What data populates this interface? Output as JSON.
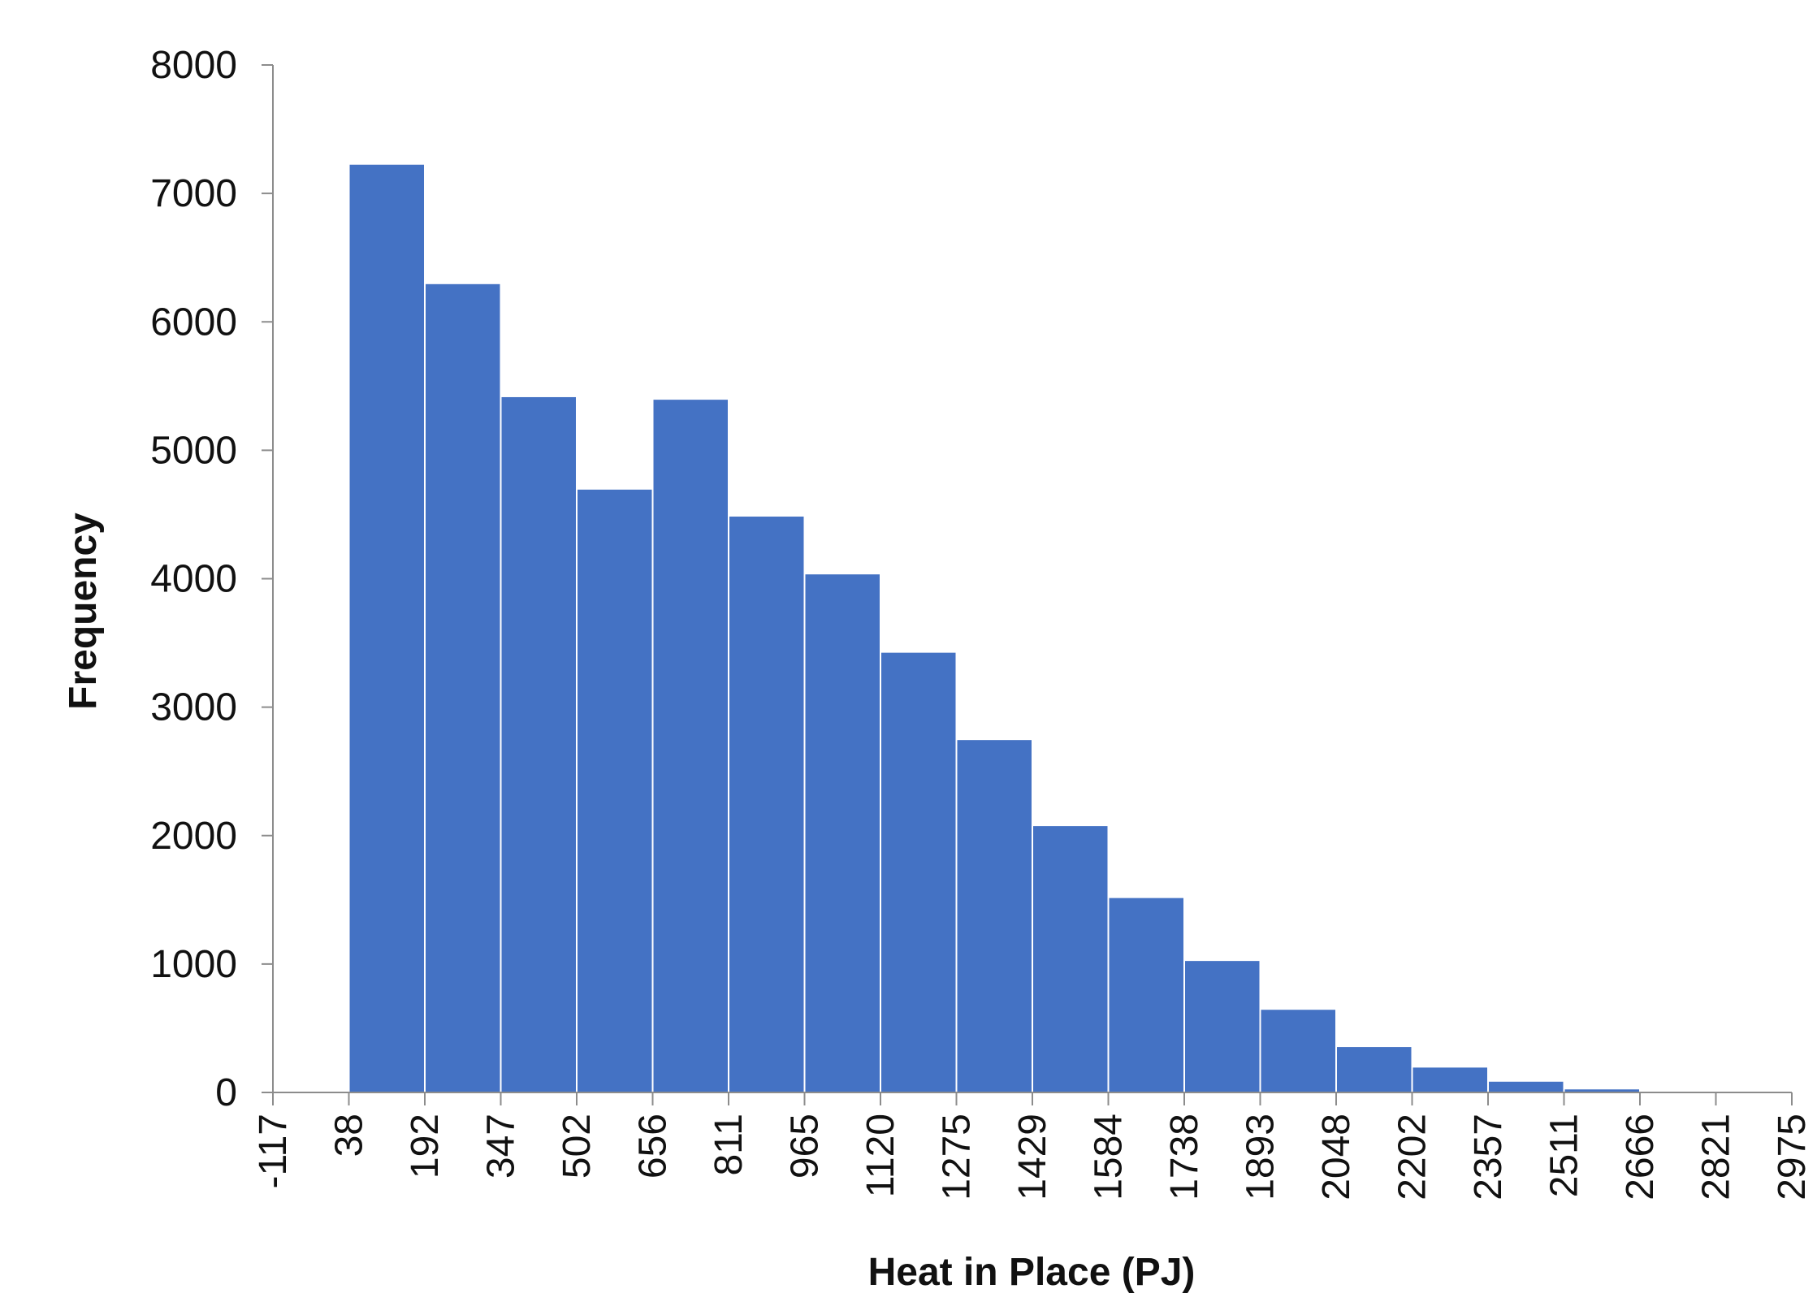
{
  "chart_data": {
    "type": "bar",
    "title": "",
    "xlabel": "Heat in Place (PJ)",
    "ylabel": "Frequency",
    "bar_color": "#4472C4",
    "x_tick_labels": [
      "-117",
      "38",
      "192",
      "347",
      "502",
      "656",
      "811",
      "965",
      "1120",
      "1275",
      "1429",
      "1584",
      "1738",
      "1893",
      "2048",
      "2202",
      "2357",
      "2511",
      "2666",
      "2821",
      "2975"
    ],
    "bins": [
      {
        "from": "38",
        "to": "192",
        "value": 7230
      },
      {
        "from": "192",
        "to": "347",
        "value": 6300
      },
      {
        "from": "347",
        "to": "502",
        "value": 5420
      },
      {
        "from": "502",
        "to": "656",
        "value": 4700
      },
      {
        "from": "656",
        "to": "811",
        "value": 5400
      },
      {
        "from": "811",
        "to": "965",
        "value": 4490
      },
      {
        "from": "965",
        "to": "1120",
        "value": 4040
      },
      {
        "from": "1120",
        "to": "1275",
        "value": 3430
      },
      {
        "from": "1275",
        "to": "1429",
        "value": 2750
      },
      {
        "from": "1429",
        "to": "1584",
        "value": 2080
      },
      {
        "from": "1584",
        "to": "1738",
        "value": 1520
      },
      {
        "from": "1738",
        "to": "1893",
        "value": 1030
      },
      {
        "from": "1893",
        "to": "2048",
        "value": 650
      },
      {
        "from": "2048",
        "to": "2202",
        "value": 360
      },
      {
        "from": "2202",
        "to": "2357",
        "value": 200
      },
      {
        "from": "2357",
        "to": "2511",
        "value": 90
      },
      {
        "from": "2511",
        "to": "2666",
        "value": 30
      },
      {
        "from": "2666",
        "to": "2821",
        "value": 0
      },
      {
        "from": "2821",
        "to": "2975",
        "value": 0
      }
    ],
    "y_ticks": [
      "0",
      "1000",
      "2000",
      "3000",
      "4000",
      "5000",
      "6000",
      "7000",
      "8000"
    ],
    "ylim": [
      0,
      8000
    ],
    "grid": false,
    "legend": "none"
  }
}
